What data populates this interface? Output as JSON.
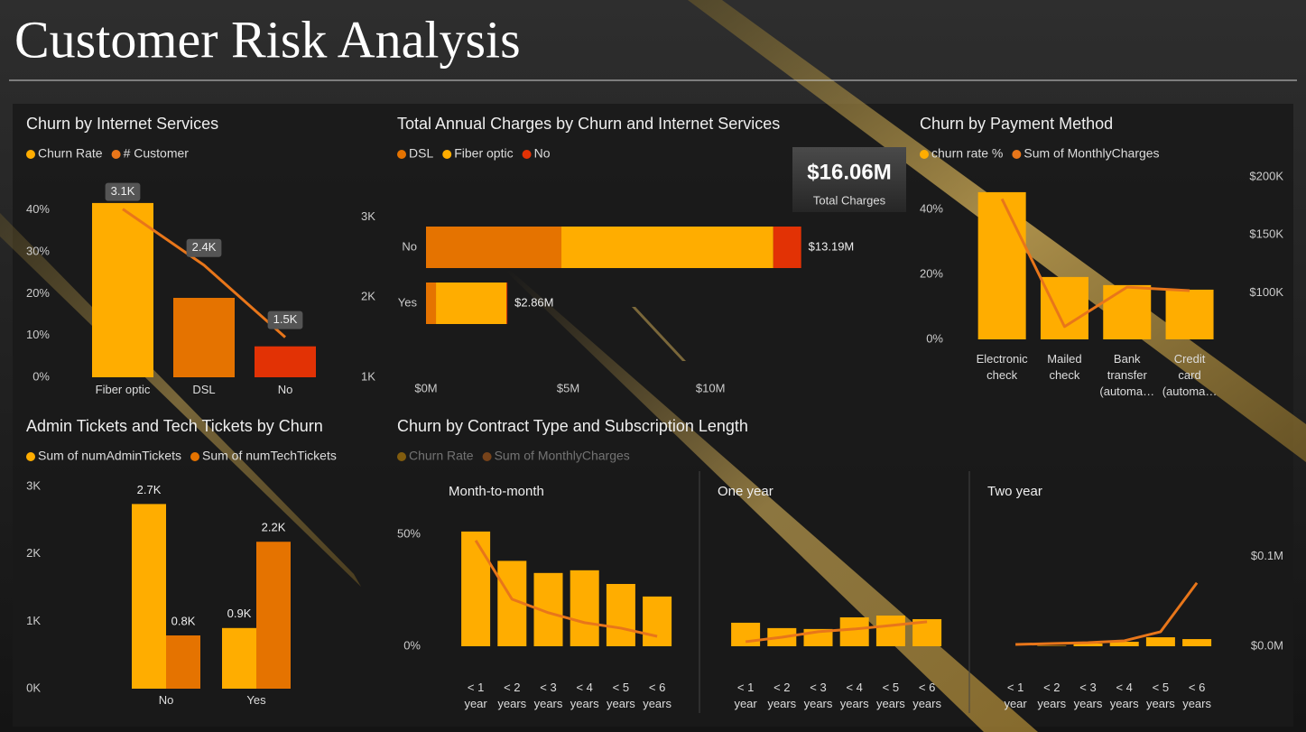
{
  "header": {
    "title": "Customer Risk Analysis"
  },
  "chart_data": [
    {
      "type": "combo",
      "title": "Churn by Internet Services",
      "categories": [
        "Fiber optic",
        "DSL",
        "No"
      ],
      "series": [
        {
          "name": "Churn Rate",
          "type": "bar",
          "color": "#FFAD00",
          "bar_colors": [
            "#FFAD00",
            "#E57300",
            "#E23205"
          ],
          "values": [
            41.7,
            19,
            7.4
          ]
        },
        {
          "name": "# Customer",
          "type": "line",
          "axis": "y2",
          "color": "#E8761A",
          "values": [
            3100,
            2400,
            1500
          ],
          "value_labels": [
            "3.1K",
            "2.4K",
            "1.5K"
          ]
        }
      ],
      "ylim": [
        0,
        46
      ],
      "yticks": [
        {
          "value": 0,
          "label": "0%"
        },
        {
          "value": 10,
          "label": "10%"
        },
        {
          "value": 20,
          "label": "20%"
        },
        {
          "value": 30,
          "label": "30%"
        },
        {
          "value": 40,
          "label": "40%"
        }
      ],
      "y2lim": [
        1000,
        3400
      ],
      "y2ticks": [
        {
          "value": 1000,
          "label": "1K"
        },
        {
          "value": 2000,
          "label": "2K"
        },
        {
          "value": 3000,
          "label": "3K"
        }
      ]
    },
    {
      "type": "hbar_stacked",
      "title": "Total Annual Charges by Churn and Internet Services",
      "categories": [
        "No",
        "Yes"
      ],
      "series": [
        {
          "name": "DSL",
          "color": "#E57300",
          "values": [
            4760000,
            350000
          ]
        },
        {
          "name": "Fiber optic",
          "color": "#FFAD00",
          "values": [
            7450000,
            2480000
          ]
        },
        {
          "name": "No",
          "color": "#E23205",
          "values": [
            980000,
            30000
          ]
        }
      ],
      "totals": [
        13190000,
        2860000
      ],
      "total_labels": [
        "$13.19M",
        "$2.86M"
      ],
      "xlim": [
        0,
        16500000
      ],
      "xticks": [
        {
          "value": 0,
          "label": "$0M"
        },
        {
          "value": 5000000,
          "label": "$5M"
        },
        {
          "value": 10000000,
          "label": "$10M"
        }
      ],
      "kpi": {
        "value": 16060000,
        "value_label": "$16.06M",
        "label": "Total Charges"
      }
    },
    {
      "type": "combo",
      "title": "Churn by Payment Method",
      "categories": [
        "Electronic check",
        "Mailed check",
        "Bank transfer (automa…",
        "Credit card (automa…"
      ],
      "series": [
        {
          "name": "churn rate %",
          "type": "bar",
          "color": "#FFAD00",
          "values": [
            45.3,
            19.2,
            16.7,
            15.3
          ]
        },
        {
          "name": "Sum of MonthlyCharges",
          "type": "line",
          "axis": "y2",
          "color": "#E8761A",
          "values": [
            181000,
            71000,
            105000,
            102000
          ]
        }
      ],
      "ylim": [
        0,
        50
      ],
      "yticks": [
        {
          "value": 0,
          "label": "0%"
        },
        {
          "value": 20,
          "label": "20%"
        },
        {
          "value": 40,
          "label": "40%"
        }
      ],
      "y2lim": [
        60000,
        200000
      ],
      "y2ticks": [
        {
          "value": 100000,
          "label": "$100K"
        },
        {
          "value": 150000,
          "label": "$150K"
        },
        {
          "value": 200000,
          "label": "$200K"
        }
      ]
    },
    {
      "type": "grouped_bar",
      "title": "Admin Tickets and Tech Tickets by Churn",
      "categories": [
        "No",
        "Yes"
      ],
      "series": [
        {
          "name": "Sum of numAdminTickets",
          "color": "#FFAD00",
          "values": [
            2740,
            900
          ],
          "value_labels": [
            "2.7K",
            "0.9K"
          ]
        },
        {
          "name": "Sum of numTechTickets",
          "color": "#E57300",
          "values": [
            790,
            2180
          ],
          "value_labels": [
            "0.8K",
            "2.2K"
          ]
        }
      ],
      "ylim": [
        0,
        3000
      ],
      "yticks": [
        {
          "value": 0,
          "label": "0K"
        },
        {
          "value": 1000,
          "label": "1K"
        },
        {
          "value": 2000,
          "label": "2K"
        },
        {
          "value": 3000,
          "label": "3K"
        }
      ]
    },
    {
      "type": "small_multiples",
      "title": "Churn by Contract Type and Subscription Length",
      "panels": [
        "Month-to-month",
        "One year",
        "Two year"
      ],
      "categories": [
        "< 1 year",
        "< 2 years",
        "< 3 years",
        "< 4 years",
        "< 5 years",
        "< 6 years"
      ],
      "series": [
        {
          "name": "Churn Rate",
          "type": "bar",
          "color": "#FFAD00",
          "values": [
            [
              51.2,
              38.1,
              32.7,
              33.9,
              27.8,
              22.2
            ],
            [
              10.5,
              8.1,
              7.7,
              12.9,
              13.7,
              12.1
            ],
            [
              0,
              0.2,
              1.2,
              2,
              4,
              3.2
            ]
          ]
        },
        {
          "name": "Sum of MonthlyCharges",
          "type": "line",
          "axis": "y2",
          "color": "#E8761A",
          "values": [
            [
              118000,
              52500,
              37400,
              26300,
              20200,
              11100
            ],
            [
              5100,
              10100,
              16200,
              19200,
              23200,
              27300
            ],
            [
              2000,
              3000,
              4000,
              6100,
              16200,
              70700
            ]
          ]
        }
      ],
      "ylim": [
        0,
        58
      ],
      "yticks": [
        {
          "value": 0,
          "label": "0%"
        },
        {
          "value": 50,
          "label": "50%"
        }
      ],
      "y2lim": [
        0,
        145000
      ],
      "y2ticks": [
        {
          "value": 0,
          "label": "$0.0M"
        },
        {
          "value": 100000,
          "label": "$0.1M"
        }
      ]
    }
  ]
}
